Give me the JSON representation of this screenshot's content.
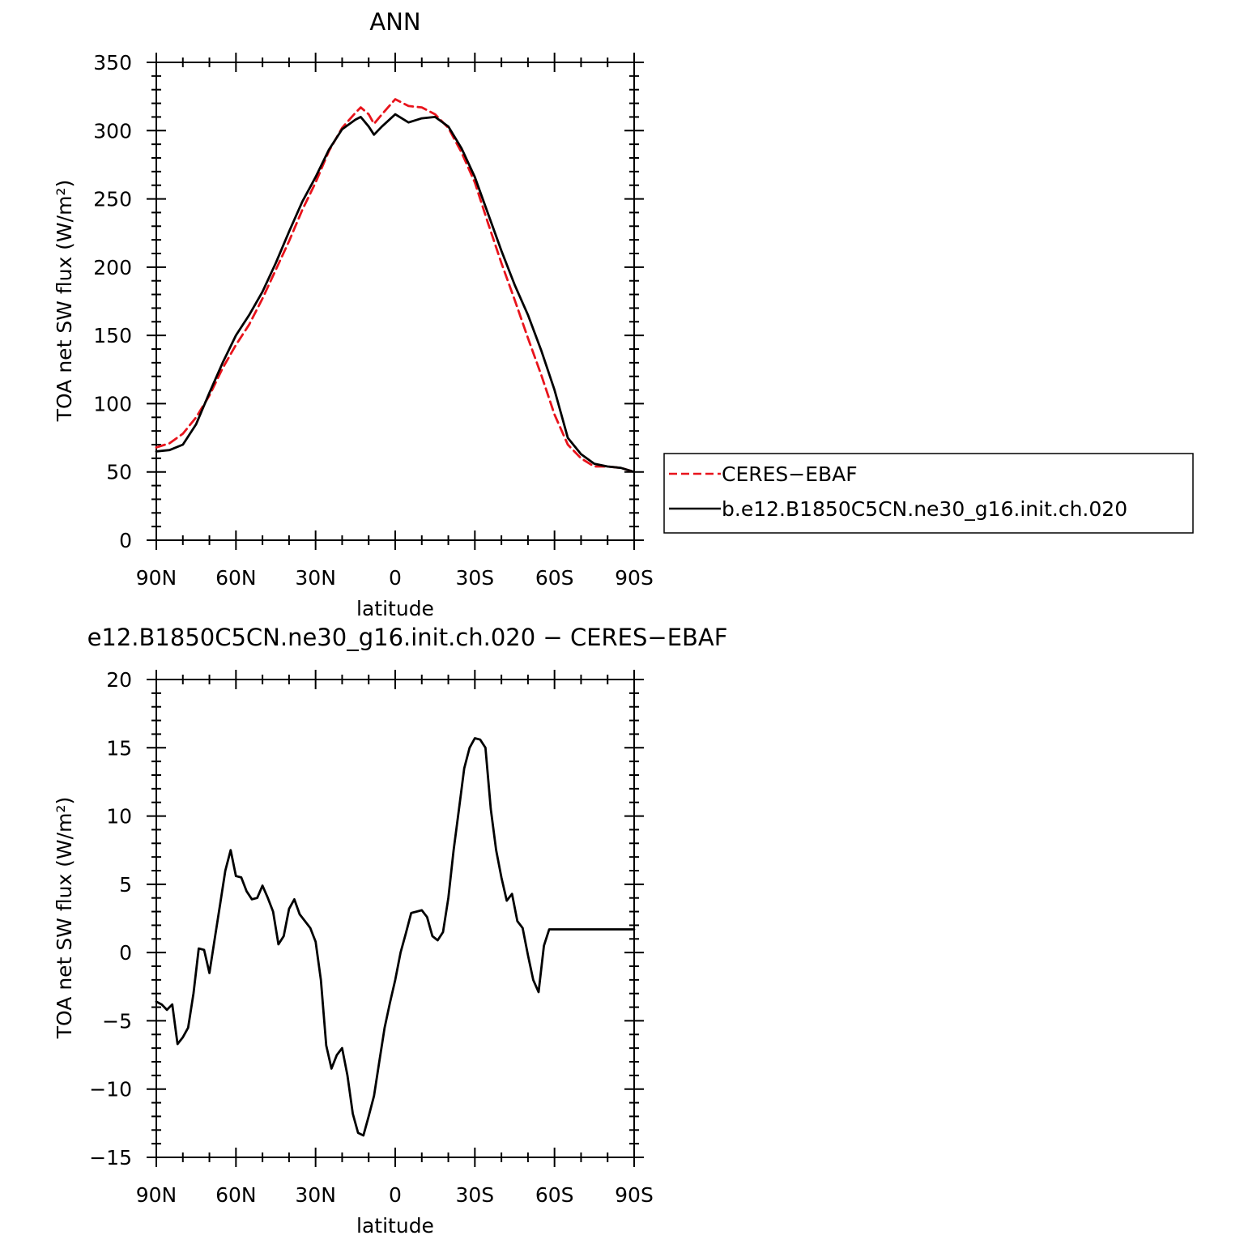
{
  "chart_data": [
    {
      "type": "line",
      "title": "ANN",
      "xlabel": "latitude",
      "ylabel": "TOA net SW flux (W/m²)",
      "xlim": [
        90,
        -90
      ],
      "ylim": [
        0,
        350
      ],
      "x_ticks": [
        90,
        60,
        30,
        0,
        -30,
        -60,
        -90
      ],
      "x_tick_labels": [
        "90N",
        "60N",
        "30N",
        "0",
        "30S",
        "60S",
        "90S"
      ],
      "y_ticks": [
        0,
        50,
        100,
        150,
        200,
        250,
        300,
        350
      ],
      "y_tick_labels": [
        "0",
        "50",
        "100",
        "150",
        "200",
        "250",
        "300",
        "350"
      ],
      "grid": false,
      "legend": {
        "placement": "right",
        "entries": [
          "CERES−EBAF",
          "b.e12.B1850C5CN.ne30_g16.init.ch.020"
        ]
      },
      "series": [
        {
          "name": "CERES−EBAF",
          "color": "#e8141c",
          "style": "dashed",
          "x": [
            90,
            85,
            80,
            75,
            70,
            65,
            60,
            55,
            50,
            45,
            40,
            35,
            30,
            25,
            20,
            15,
            13,
            10,
            8,
            5,
            0,
            -5,
            -10,
            -15,
            -20,
            -25,
            -30,
            -35,
            -40,
            -45,
            -50,
            -55,
            -60,
            -65,
            -70,
            -75,
            -80,
            -85,
            -90
          ],
          "y": [
            68,
            71,
            78,
            90,
            106,
            126,
            143,
            158,
            177,
            198,
            219,
            242,
            262,
            285,
            302,
            313,
            317,
            312,
            305,
            312,
            323,
            318,
            317,
            312,
            302,
            284,
            262,
            232,
            203,
            176,
            148,
            121,
            92,
            70,
            60,
            54,
            54,
            53,
            50
          ]
        },
        {
          "name": "b.e12.B1850C5CN.ne30_g16.init.ch.020",
          "color": "#000000",
          "style": "solid",
          "x": [
            90,
            85,
            80,
            75,
            70,
            65,
            60,
            55,
            50,
            45,
            40,
            35,
            30,
            25,
            20,
            15,
            13,
            10,
            8,
            5,
            0,
            -5,
            -10,
            -15,
            -20,
            -25,
            -30,
            -35,
            -40,
            -45,
            -50,
            -55,
            -60,
            -65,
            -70,
            -75,
            -80,
            -85,
            -90
          ],
          "y": [
            65,
            66,
            70,
            85,
            108,
            130,
            150,
            165,
            182,
            203,
            226,
            248,
            266,
            286,
            301,
            308,
            310,
            303,
            297,
            303,
            312,
            306,
            309,
            310,
            303,
            287,
            266,
            239,
            212,
            187,
            165,
            139,
            110,
            75,
            63,
            56,
            54,
            53,
            50
          ]
        }
      ]
    },
    {
      "type": "line",
      "title": "e12.B1850C5CN.ne30_g16.init.ch.020 − CERES−EBAF",
      "xlabel": "latitude",
      "ylabel": "TOA net SW flux (W/m²)",
      "xlim": [
        90,
        -90
      ],
      "ylim": [
        -15,
        20
      ],
      "x_ticks": [
        90,
        60,
        30,
        0,
        -30,
        -60,
        -90
      ],
      "x_tick_labels": [
        "90N",
        "60N",
        "30N",
        "0",
        "30S",
        "60S",
        "90S"
      ],
      "y_ticks": [
        -15,
        -10,
        -5,
        0,
        5,
        10,
        15,
        20
      ],
      "y_tick_labels": [
        "−15",
        "−10",
        "−5",
        "0",
        "5",
        "10",
        "15",
        "20"
      ],
      "grid": false,
      "series": [
        {
          "color": "#000000",
          "style": "solid",
          "x": [
            90,
            88,
            86,
            84,
            82,
            80,
            78,
            76,
            74,
            72,
            70,
            68,
            66,
            64,
            62,
            60,
            58,
            56,
            54,
            52,
            50,
            48,
            46,
            44,
            42,
            40,
            38,
            36,
            34,
            32,
            30,
            28,
            26,
            24,
            22,
            20,
            18,
            16,
            14,
            12,
            10,
            8,
            6,
            4,
            2,
            0,
            -2,
            -4,
            -6,
            -8,
            -10,
            -12,
            -14,
            -16,
            -18,
            -20,
            -22,
            -24,
            -26,
            -28,
            -30,
            -32,
            -34,
            -36,
            -38,
            -40,
            -42,
            -44,
            -46,
            -48,
            -50,
            -52,
            -54,
            -56,
            -58,
            -60,
            -62,
            -64,
            -66,
            -68,
            -70,
            -72,
            -74,
            -76,
            -78,
            -80,
            -82,
            -84,
            -86,
            -88,
            -90
          ],
          "y": [
            -3.6,
            -3.8,
            -4.2,
            -3.8,
            -6.7,
            -6.2,
            -5.5,
            -3.0,
            0.3,
            0.2,
            -1.5,
            1.0,
            3.5,
            6.0,
            7.5,
            5.6,
            5.5,
            4.5,
            3.9,
            4.0,
            4.9,
            4.0,
            3.0,
            0.6,
            1.2,
            3.2,
            3.9,
            2.8,
            2.3,
            1.8,
            0.8,
            -2.0,
            -6.8,
            -8.5,
            -7.5,
            -7.0,
            -9.0,
            -11.8,
            -13.2,
            -13.4,
            -12.0,
            -10.5,
            -8.0,
            -5.5,
            -3.7,
            -2.0,
            0.0,
            1.4,
            2.9,
            3.0,
            3.1,
            2.6,
            1.2,
            0.9,
            1.5,
            4.0,
            7.5,
            10.5,
            13.5,
            15.0,
            15.7,
            15.6,
            15.0,
            10.5,
            7.5,
            5.5,
            3.8,
            4.3,
            2.3,
            1.8,
            -0.2,
            -2.0,
            -2.9,
            0.5,
            1.7,
            1.7,
            1.7,
            1.7,
            1.7,
            1.7,
            1.7,
            1.7,
            1.7,
            1.7,
            1.7,
            1.7,
            1.7,
            1.7,
            1.7,
            1.7,
            1.7
          ]
        }
      ]
    }
  ]
}
